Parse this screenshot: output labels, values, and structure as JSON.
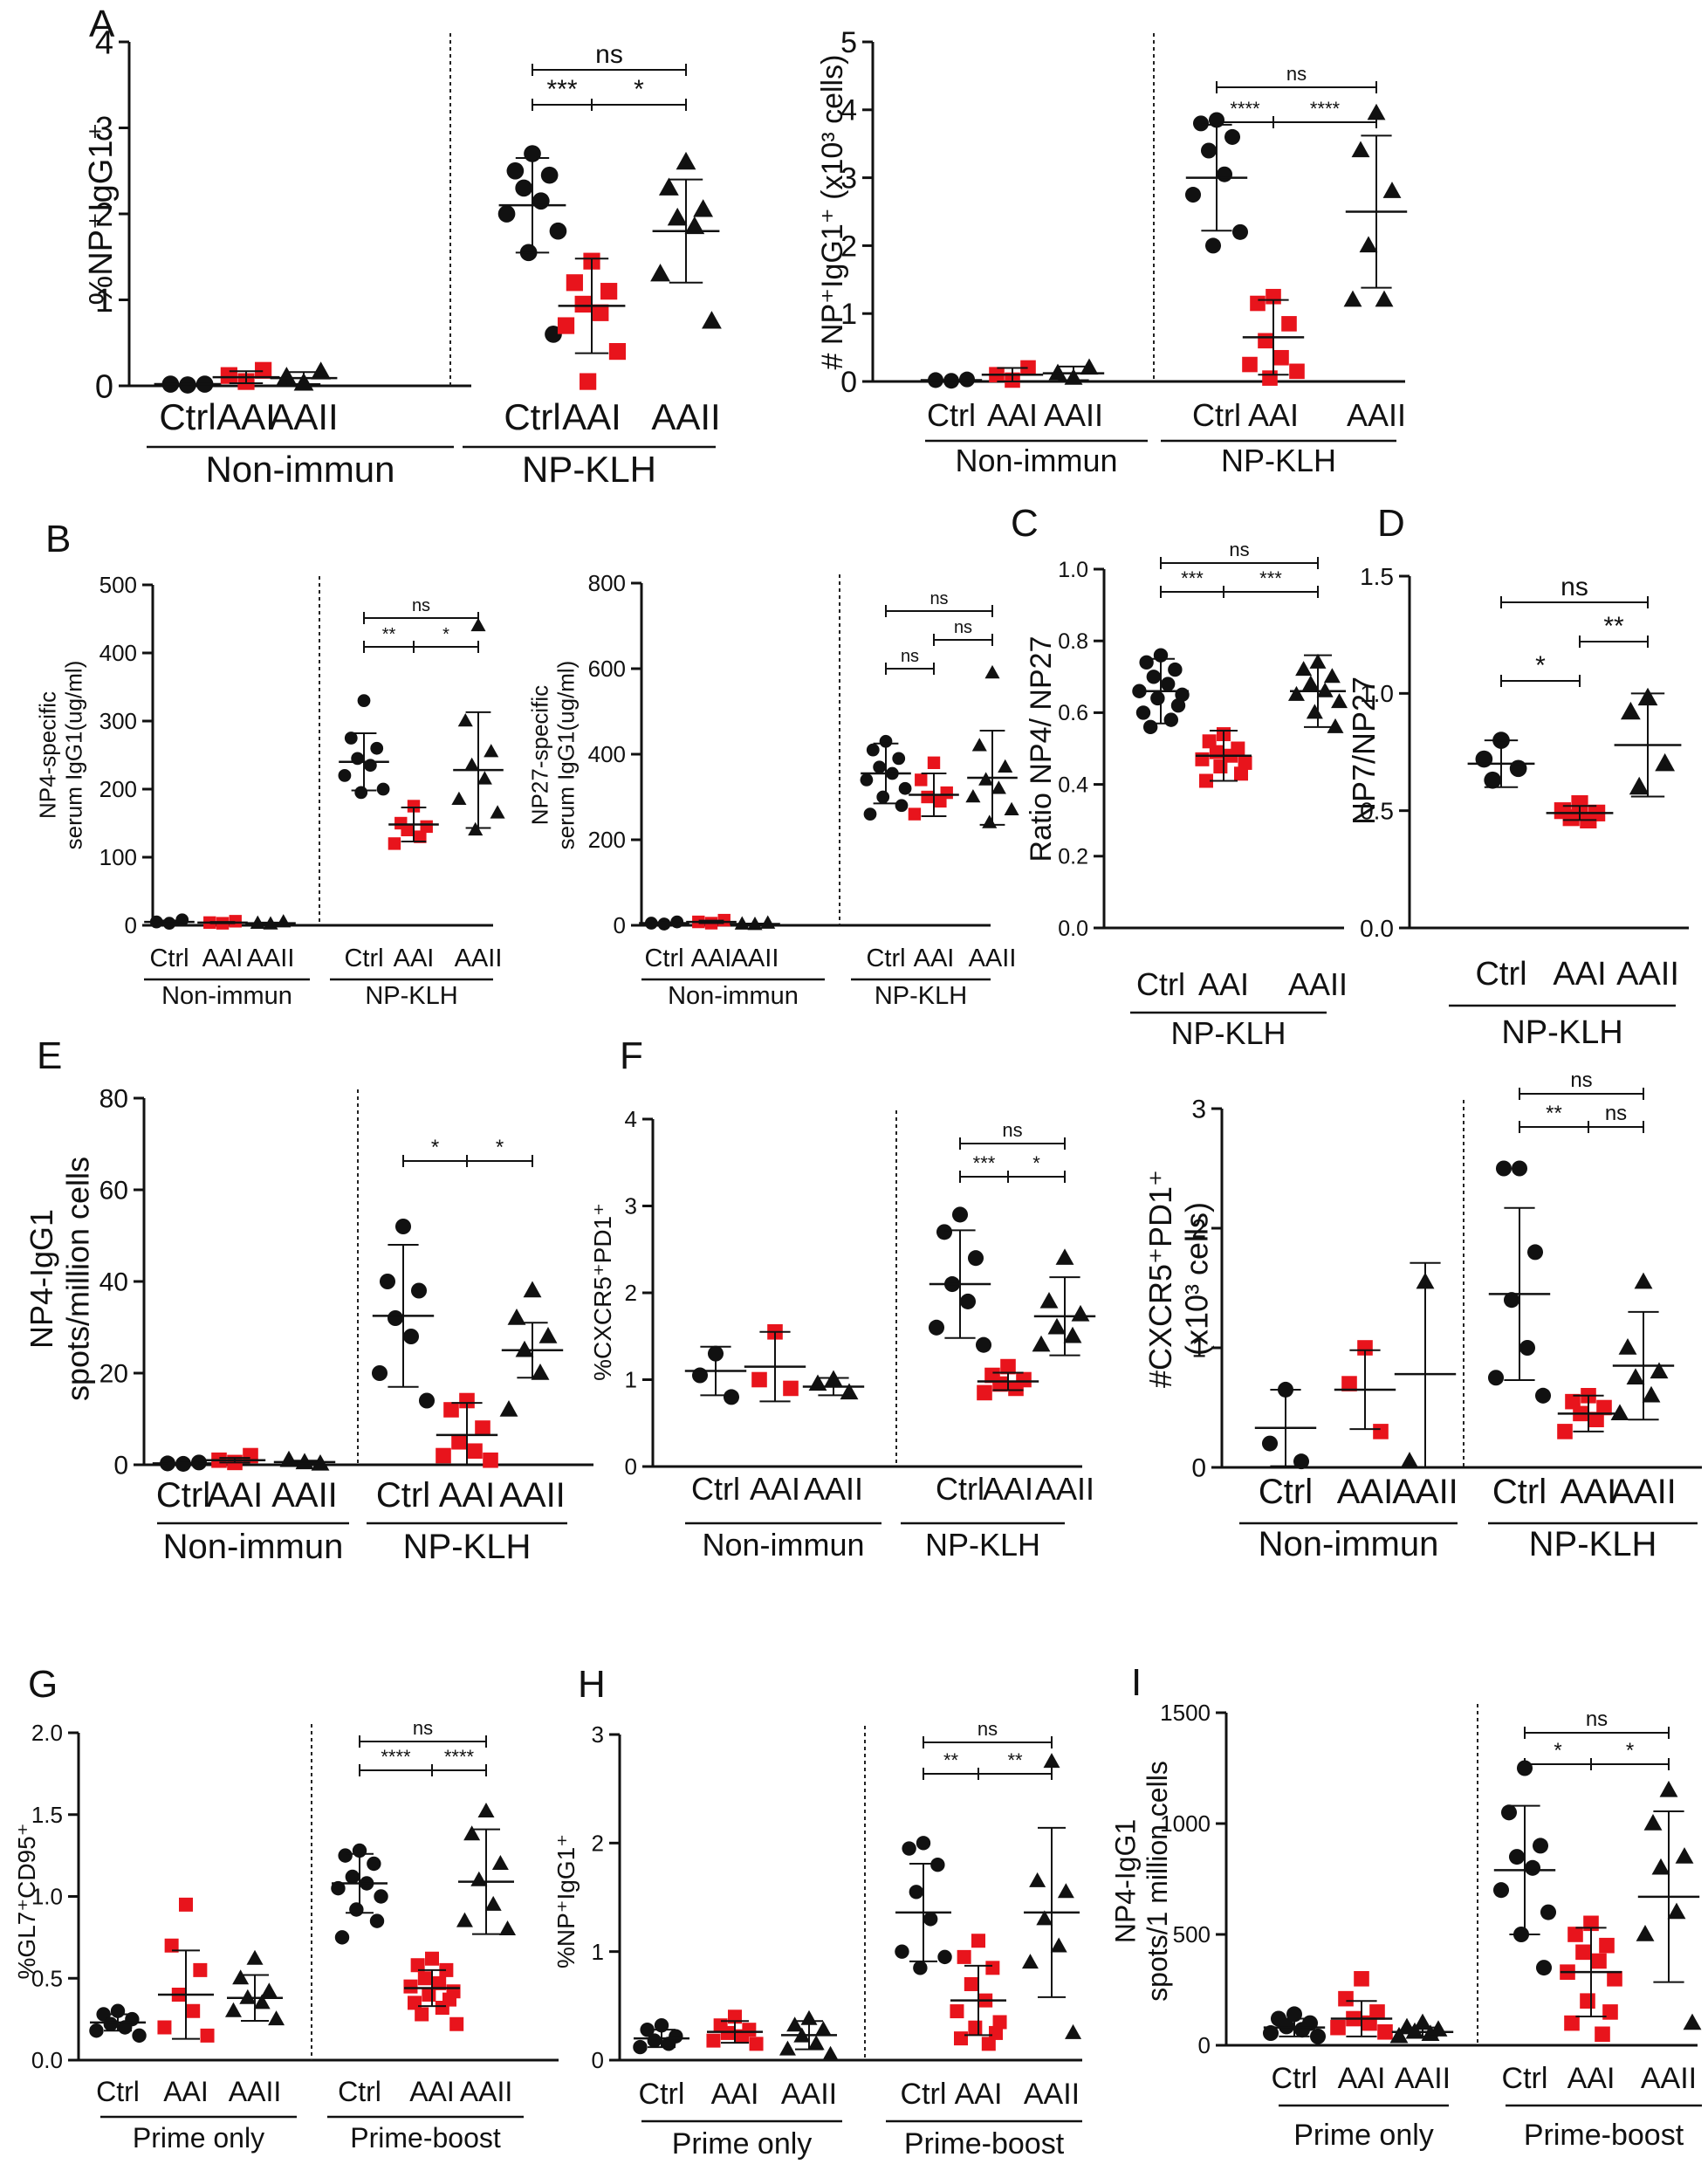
{
  "colors": {
    "ctrl": "#111111",
    "aai": "#e8141c",
    "aaii": "#111111"
  },
  "chart_data": [
    {
      "id": "A1",
      "type": "scatter",
      "panel_letter": "A",
      "ylabel": "%NP⁺IgG1⁺",
      "ylim": [
        0,
        4
      ],
      "yticks": [
        "0",
        "1",
        "2",
        "3",
        "4"
      ],
      "categories": [
        "Ctrl",
        "AAI",
        "AAII",
        "Ctrl",
        "AAI",
        "AAII"
      ],
      "groups": [
        "Non-immun",
        "NP-KLH"
      ],
      "series": [
        [
          0.01,
          0.02,
          0.02
        ],
        [
          0.05,
          0.12,
          0.18
        ],
        [
          0.03,
          0.1,
          0.16
        ],
        [
          2.7,
          2.5,
          2.45,
          2.3,
          2.15,
          2.0,
          1.8,
          1.55,
          0.6
        ],
        [
          1.45,
          1.2,
          1.1,
          0.95,
          0.85,
          0.7,
          0.4,
          0.05
        ],
        [
          2.6,
          2.3,
          2.05,
          1.95,
          1.85,
          1.3,
          0.75
        ]
      ],
      "means": [
        0.02,
        0.1,
        0.09,
        2.1,
        0.93,
        1.8
      ],
      "sds": [
        0.0,
        0.07,
        0.07,
        0.55,
        0.55,
        0.6
      ],
      "comparisons": [
        {
          "from": 3,
          "to": 4,
          "label": "***",
          "level": 1
        },
        {
          "from": 4,
          "to": 5,
          "label": "*",
          "level": 1
        },
        {
          "from": 3,
          "to": 5,
          "label": "ns",
          "level": 2
        }
      ]
    },
    {
      "id": "A2",
      "type": "scatter",
      "ylabel": "# NP⁺IgG1⁺ (x10³ cells)",
      "ylim": [
        0,
        5
      ],
      "yticks": [
        "0",
        "1",
        "2",
        "3",
        "4",
        "5"
      ],
      "categories": [
        "Ctrl",
        "AAI",
        "AAII",
        "Ctrl",
        "AAI",
        "AAII"
      ],
      "groups": [
        "Non-immun",
        "NP-KLH"
      ],
      "series": [
        [
          0.01,
          0.02,
          0.03
        ],
        [
          0.02,
          0.1,
          0.2
        ],
        [
          0.05,
          0.12,
          0.2
        ],
        [
          3.85,
          3.8,
          3.6,
          3.4,
          3.05,
          2.75,
          2.2,
          2.0
        ],
        [
          1.25,
          1.15,
          0.85,
          0.6,
          0.35,
          0.25,
          0.15,
          0.05
        ],
        [
          3.95,
          3.4,
          2.8,
          2.0,
          1.2,
          1.2
        ]
      ],
      "means": [
        0.02,
        0.1,
        0.12,
        3.0,
        0.65,
        2.5
      ],
      "sds": [
        0.0,
        0.1,
        0.1,
        0.78,
        0.55,
        1.12
      ],
      "comparisons": [
        {
          "from": 3,
          "to": 4,
          "label": "****",
          "level": 1
        },
        {
          "from": 4,
          "to": 5,
          "label": "****",
          "level": 1
        },
        {
          "from": 3,
          "to": 5,
          "label": "ns",
          "level": 2
        }
      ]
    },
    {
      "id": "B1",
      "type": "scatter",
      "panel_letter": "B",
      "ylabel": [
        "NP4-specific",
        "serum IgG1(ug/ml)"
      ],
      "ylim": [
        0,
        500
      ],
      "yticks": [
        "0",
        "100",
        "200",
        "300",
        "400",
        "500"
      ],
      "categories": [
        "Ctrl",
        "AAI",
        "AAII",
        "Ctrl",
        "AAI",
        "AAII"
      ],
      "groups": [
        "Non-immun",
        "NP-KLH"
      ],
      "series": [
        [
          3,
          5,
          8
        ],
        [
          3,
          4,
          6
        ],
        [
          2,
          3,
          5
        ],
        [
          330,
          275,
          260,
          245,
          235,
          220,
          200,
          195
        ],
        [
          175,
          150,
          145,
          140,
          130,
          120
        ],
        [
          440,
          300,
          255,
          235,
          215,
          185,
          165,
          140
        ]
      ],
      "means": [
        5,
        4,
        3,
        240,
        148,
        228
      ],
      "sds": [
        2,
        1,
        1,
        42,
        25,
        85
      ],
      "comparisons": [
        {
          "from": 3,
          "to": 4,
          "label": "**",
          "level": 1
        },
        {
          "from": 4,
          "to": 5,
          "label": "*",
          "level": 1
        },
        {
          "from": 3,
          "to": 5,
          "label": "ns",
          "level": 2
        }
      ]
    },
    {
      "id": "B2",
      "type": "scatter",
      "ylabel": [
        "NP27-specific",
        "serum IgG1(ug/ml)"
      ],
      "ylim": [
        0,
        800
      ],
      "yticks": [
        "0",
        "200",
        "400",
        "600",
        "800"
      ],
      "categories": [
        "Ctrl",
        "AAI",
        "AAII",
        "Ctrl",
        "AAI",
        "AAII"
      ],
      "groups": [
        "Non-immun",
        "NP-KLH"
      ],
      "series": [
        [
          3,
          5,
          8
        ],
        [
          5,
          8,
          12
        ],
        [
          2,
          3,
          5
        ],
        [
          430,
          410,
          390,
          370,
          355,
          340,
          320,
          300,
          280,
          260
        ],
        [
          380,
          340,
          310,
          300,
          290,
          260
        ],
        [
          590,
          420,
          370,
          340,
          320,
          300,
          270,
          240
        ]
      ],
      "means": [
        5,
        8,
        3,
        355,
        305,
        345
      ],
      "sds": [
        2,
        3,
        1,
        70,
        50,
        110
      ],
      "comparisons": [
        {
          "from": 3,
          "to": 4,
          "label": "ns",
          "level": 1
        },
        {
          "from": 4,
          "to": 5,
          "label": "ns",
          "level": 2
        },
        {
          "from": 3,
          "to": 5,
          "label": "ns",
          "level": 3
        }
      ]
    },
    {
      "id": "C",
      "type": "scatter",
      "panel_letter": "C",
      "ylabel": "Ratio NP4/ NP27",
      "ylim": [
        0,
        1.0
      ],
      "yticks": [
        "0.0",
        "0.2",
        "0.4",
        "0.6",
        "0.8",
        "1.0"
      ],
      "categories": [
        "Ctrl",
        "AAI",
        "AAII"
      ],
      "groups": [
        "NP-KLH"
      ],
      "series": [
        [
          0.76,
          0.74,
          0.72,
          0.7,
          0.68,
          0.66,
          0.65,
          0.64,
          0.62,
          0.6,
          0.58,
          0.56
        ],
        [
          0.54,
          0.52,
          0.5,
          0.49,
          0.48,
          0.47,
          0.46,
          0.45,
          0.43,
          0.41
        ],
        [
          0.74,
          0.72,
          0.7,
          0.68,
          0.66,
          0.65,
          0.63,
          0.6,
          0.56
        ]
      ],
      "means": [
        0.66,
        0.48,
        0.66
      ],
      "sds": [
        0.09,
        0.07,
        0.1
      ],
      "comparisons": [
        {
          "from": 0,
          "to": 1,
          "label": "***",
          "level": 1
        },
        {
          "from": 1,
          "to": 2,
          "label": "***",
          "level": 1
        },
        {
          "from": 0,
          "to": 2,
          "label": "ns",
          "level": 2
        }
      ]
    },
    {
      "id": "D",
      "type": "scatter",
      "panel_letter": "D",
      "ylabel": "NP7/NP27",
      "ylim": [
        0,
        1.5
      ],
      "yticks": [
        "0.0",
        "0.5",
        "1.0",
        "1.5"
      ],
      "categories": [
        "Ctrl",
        "AAI",
        "AAII"
      ],
      "groups": [
        "NP-KLH"
      ],
      "series": [
        [
          0.8,
          0.72,
          0.68,
          0.63
        ],
        [
          0.53,
          0.5,
          0.49,
          0.47,
          0.46
        ],
        [
          0.98,
          0.92,
          0.7,
          0.6
        ]
      ],
      "means": [
        0.7,
        0.49,
        0.78
      ],
      "sds": [
        0.1,
        0.03,
        0.22
      ],
      "comparisons": [
        {
          "from": 0,
          "to": 1,
          "label": "*",
          "level": 1
        },
        {
          "from": 1,
          "to": 2,
          "label": "**",
          "level": 2
        },
        {
          "from": 0,
          "to": 2,
          "label": "ns",
          "level": 3
        }
      ]
    },
    {
      "id": "E",
      "type": "scatter",
      "panel_letter": "E",
      "ylabel": [
        "NP4-IgG1",
        "spots/million cells"
      ],
      "ylim": [
        0,
        80
      ],
      "yticks": [
        "0",
        "20",
        "40",
        "60",
        "80"
      ],
      "categories": [
        "Ctrl",
        "AAI",
        "AAII",
        "Ctrl",
        "AAI",
        "AAII"
      ],
      "groups": [
        "Non-immun",
        "NP-KLH"
      ],
      "series": [
        [
          0.2,
          0.3,
          0.5
        ],
        [
          0.5,
          1.0,
          2.0
        ],
        [
          0.5,
          1.0,
          0.2
        ],
        [
          52,
          40,
          38,
          32,
          28,
          20,
          14
        ],
        [
          14,
          12,
          8,
          5,
          3,
          2,
          1
        ],
        [
          38,
          32,
          28,
          25,
          20,
          12
        ]
      ],
      "means": [
        0.3,
        1.0,
        0.6,
        32.5,
        6.5,
        25
      ],
      "sds": [
        0.1,
        0.5,
        0.3,
        15.5,
        7,
        6
      ],
      "comparisons": [
        {
          "from": 3,
          "to": 4,
          "label": "*",
          "level": 1
        },
        {
          "from": 4,
          "to": 5,
          "label": "*",
          "level": 1
        }
      ]
    },
    {
      "id": "F1",
      "type": "scatter",
      "panel_letter": "F",
      "ylabel": "%CXCR5⁺PD1⁺",
      "ylim": [
        0,
        4
      ],
      "yticks": [
        "0",
        "1",
        "2",
        "3",
        "4"
      ],
      "categories": [
        "Ctrl",
        "AAI",
        "AAII",
        "Ctrl",
        "AAI",
        "AAII"
      ],
      "groups": [
        "Non-immun",
        "NP-KLH"
      ],
      "series": [
        [
          1.3,
          1.05,
          0.8
        ],
        [
          1.55,
          1.0,
          0.9
        ],
        [
          1.0,
          0.95,
          0.85
        ],
        [
          2.9,
          2.7,
          2.4,
          2.1,
          1.9,
          1.6,
          1.4
        ],
        [
          1.15,
          1.05,
          1.0,
          0.95,
          0.9,
          0.85
        ],
        [
          2.4,
          1.9,
          1.75,
          1.6,
          1.5,
          1.4
        ]
      ],
      "means": [
        1.1,
        1.15,
        0.92,
        2.1,
        0.98,
        1.73
      ],
      "sds": [
        0.28,
        0.4,
        0.1,
        0.62,
        0.1,
        0.45
      ],
      "comparisons": [
        {
          "from": 3,
          "to": 4,
          "label": "***",
          "level": 1
        },
        {
          "from": 4,
          "to": 5,
          "label": "*",
          "level": 1
        },
        {
          "from": 3,
          "to": 5,
          "label": "ns",
          "level": 2
        }
      ]
    },
    {
      "id": "F2",
      "type": "scatter",
      "ylabel": [
        "#CXCR5⁺PD1⁺",
        "(x10³ cells)"
      ],
      "ylim": [
        0,
        3
      ],
      "yticks": [
        "0",
        "1",
        "2",
        "3"
      ],
      "categories": [
        "Ctrl",
        "AAI",
        "AAII",
        "Ctrl",
        "AAI",
        "AAII"
      ],
      "groups": [
        "Non-immun",
        "NP-KLH"
      ],
      "series": [
        [
          0.65,
          0.2,
          0.05
        ],
        [
          1.0,
          0.7,
          0.3
        ],
        [
          1.55,
          0.05
        ],
        [
          2.5,
          2.5,
          1.8,
          1.4,
          1.0,
          0.75,
          0.6
        ],
        [
          0.6,
          0.55,
          0.5,
          0.45,
          0.4,
          0.3
        ],
        [
          1.55,
          1.0,
          0.8,
          0.75,
          0.6,
          0.45
        ]
      ],
      "means": [
        0.33,
        0.65,
        0.78,
        1.45,
        0.45,
        0.85
      ],
      "sds": [
        0.32,
        0.33,
        0.93,
        0.72,
        0.15,
        0.45
      ],
      "comparisons": [
        {
          "from": 3,
          "to": 4,
          "label": "**",
          "level": 1
        },
        {
          "from": 4,
          "to": 5,
          "label": "ns",
          "level": 1
        },
        {
          "from": 3,
          "to": 5,
          "label": "ns",
          "level": 2
        }
      ]
    },
    {
      "id": "G",
      "type": "scatter",
      "panel_letter": "G",
      "ylabel": "%GL7⁺CD95⁺",
      "ylim": [
        0,
        2.0
      ],
      "yticks": [
        "0.0",
        "0.5",
        "1.0",
        "1.5",
        "2.0"
      ],
      "categories": [
        "Ctrl",
        "AAI",
        "AAII",
        "Ctrl",
        "AAI",
        "AAII"
      ],
      "groups": [
        "Prime only",
        "Prime-boost"
      ],
      "series": [
        [
          0.3,
          0.28,
          0.25,
          0.22,
          0.2,
          0.18,
          0.15
        ],
        [
          0.95,
          0.7,
          0.55,
          0.4,
          0.3,
          0.2,
          0.15
        ],
        [
          0.62,
          0.5,
          0.42,
          0.38,
          0.35,
          0.3,
          0.25
        ],
        [
          1.28,
          1.25,
          1.2,
          1.12,
          1.08,
          1.05,
          1.0,
          0.92,
          0.85,
          0.75
        ],
        [
          0.62,
          0.58,
          0.55,
          0.5,
          0.47,
          0.45,
          0.42,
          0.4,
          0.37,
          0.35,
          0.32,
          0.28,
          0.22
        ],
        [
          1.52,
          1.38,
          1.2,
          1.1,
          0.95,
          0.85,
          0.8
        ]
      ],
      "means": [
        0.23,
        0.4,
        0.38,
        1.08,
        0.44,
        1.09
      ],
      "sds": [
        0.05,
        0.27,
        0.14,
        0.18,
        0.11,
        0.32
      ],
      "comparisons": [
        {
          "from": 3,
          "to": 4,
          "label": "****",
          "level": 1
        },
        {
          "from": 4,
          "to": 5,
          "label": "****",
          "level": 1
        },
        {
          "from": 3,
          "to": 5,
          "label": "ns",
          "level": 2
        }
      ]
    },
    {
      "id": "H",
      "type": "scatter",
      "panel_letter": "H",
      "ylabel": "%NP⁺IgG1⁺",
      "ylim": [
        0,
        3
      ],
      "yticks": [
        "0",
        "1",
        "2",
        "3"
      ],
      "categories": [
        "Ctrl",
        "AAI",
        "AAII",
        "Ctrl",
        "AAI",
        "AAII"
      ],
      "groups": [
        "Prime only",
        "Prime-boost"
      ],
      "series": [
        [
          0.32,
          0.28,
          0.22,
          0.18,
          0.15,
          0.12
        ],
        [
          0.4,
          0.32,
          0.28,
          0.25,
          0.22,
          0.18,
          0.15
        ],
        [
          0.38,
          0.32,
          0.28,
          0.22,
          0.15,
          0.1,
          0.05
        ],
        [
          2.0,
          1.95,
          1.8,
          1.55,
          1.3,
          1.0,
          0.95,
          0.85
        ],
        [
          1.1,
          0.95,
          0.85,
          0.7,
          0.55,
          0.45,
          0.35,
          0.3,
          0.25,
          0.2,
          0.15
        ],
        [
          2.75,
          1.65,
          1.55,
          1.3,
          1.05,
          0.9,
          0.25
        ]
      ],
      "means": [
        0.2,
        0.26,
        0.23,
        1.36,
        0.55,
        1.36
      ],
      "sds": [
        0.08,
        0.1,
        0.13,
        0.45,
        0.32,
        0.78
      ],
      "comparisons": [
        {
          "from": 3,
          "to": 4,
          "label": "**",
          "level": 1
        },
        {
          "from": 4,
          "to": 5,
          "label": "**",
          "level": 1
        },
        {
          "from": 3,
          "to": 5,
          "label": "ns",
          "level": 2
        }
      ]
    },
    {
      "id": "I",
      "type": "scatter",
      "panel_letter": "I",
      "ylabel": [
        "NP4-IgG1",
        "spots/1 million cells"
      ],
      "ylim": [
        0,
        1500
      ],
      "yticks": [
        "0",
        "500",
        "1000",
        "1500"
      ],
      "categories": [
        "Ctrl",
        "AAI",
        "AAII",
        "Ctrl",
        "AAI",
        "AAII"
      ],
      "groups": [
        "Prime only",
        "Prime-boost"
      ],
      "series": [
        [
          140,
          120,
          100,
          85,
          70,
          55,
          40
        ],
        [
          300,
          210,
          150,
          120,
          100,
          80,
          60
        ],
        [
          100,
          80,
          70,
          60,
          50,
          40
        ],
        [
          1250,
          1050,
          900,
          850,
          800,
          700,
          600,
          500,
          350
        ],
        [
          550,
          500,
          450,
          420,
          380,
          330,
          300,
          200,
          150,
          100,
          50
        ],
        [
          1150,
          1000,
          850,
          800,
          600,
          500,
          100
        ]
      ],
      "means": [
        80,
        120,
        60,
        790,
        330,
        670
      ],
      "sds": [
        40,
        80,
        20,
        290,
        200,
        385
      ],
      "comparisons": [
        {
          "from": 3,
          "to": 4,
          "label": "*",
          "level": 1
        },
        {
          "from": 4,
          "to": 5,
          "label": "*",
          "level": 1
        },
        {
          "from": 3,
          "to": 5,
          "label": "ns",
          "level": 2
        }
      ]
    }
  ]
}
